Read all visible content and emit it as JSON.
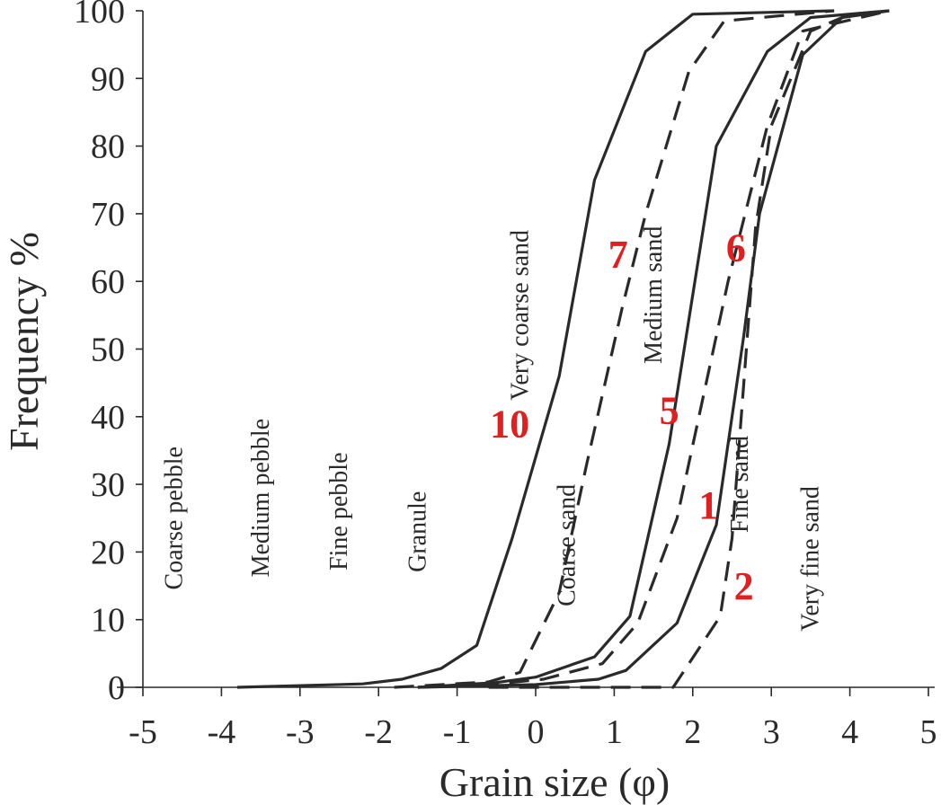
{
  "chart_data": {
    "type": "line",
    "title": "",
    "xlabel": "Grain size (φ)",
    "ylabel": "Frequency %",
    "xlim": [
      -5,
      5
    ],
    "ylim": [
      0,
      100
    ],
    "x_ticks": [
      -5,
      -4,
      -3,
      -2,
      -1,
      0,
      1,
      2,
      3,
      4,
      5
    ],
    "x_tick_labels": [
      "-5",
      "-4",
      "-3",
      "-2",
      "-1",
      "0",
      "1",
      "2",
      "3",
      "4",
      "5"
    ],
    "y_ticks": [
      0,
      10,
      20,
      30,
      40,
      50,
      60,
      70,
      80,
      90,
      100
    ],
    "y_tick_labels": [
      "0",
      "10",
      "20",
      "30",
      "40",
      "50",
      "60",
      "70",
      "80",
      "90",
      "100"
    ],
    "grid": false,
    "legend": "none",
    "series_label_color": "#e02020",
    "line_color": "#2a2a2a",
    "size_classes": [
      {
        "name": "Coarse pebble",
        "x": -4.5,
        "y": 25
      },
      {
        "name": "Medium pebble",
        "x": -3.4,
        "y": 28
      },
      {
        "name": "Fine pebble",
        "x": -2.4,
        "y": 26
      },
      {
        "name": "Granule",
        "x": -1.4,
        "y": 23
      },
      {
        "name": "Very coarse sand",
        "x": -0.1,
        "y": 55
      },
      {
        "name": "Coarse sand",
        "x": 0.5,
        "y": 21
      },
      {
        "name": "Medium sand",
        "x": 1.6,
        "y": 58
      },
      {
        "name": "Fine sand",
        "x": 2.7,
        "y": 30
      },
      {
        "name": "Very fine sand",
        "x": 3.6,
        "y": 19
      }
    ],
    "series": [
      {
        "name": "10",
        "dash": "solid",
        "label_x": -0.33,
        "label_y": 37,
        "points": [
          [
            -3.8,
            0
          ],
          [
            -2.2,
            0.5
          ],
          [
            -1.7,
            1.2
          ],
          [
            -1.2,
            2.8
          ],
          [
            -0.75,
            6.2
          ],
          [
            -0.3,
            22
          ],
          [
            0.3,
            46
          ],
          [
            0.75,
            75
          ],
          [
            1.4,
            94
          ],
          [
            2.0,
            99.5
          ],
          [
            3.8,
            100
          ]
        ]
      },
      {
        "name": "7",
        "dash": "dashed",
        "label_x": 1.05,
        "label_y": 62,
        "points": [
          [
            -1.8,
            0
          ],
          [
            -0.6,
            0.8
          ],
          [
            -0.2,
            2.2
          ],
          [
            0.3,
            14
          ],
          [
            0.65,
            33
          ],
          [
            1.1,
            56
          ],
          [
            1.4,
            70
          ],
          [
            1.95,
            91
          ],
          [
            2.4,
            98.5
          ],
          [
            3.8,
            100
          ]
        ]
      },
      {
        "name": "5",
        "dash": "solid",
        "label_x": 1.7,
        "label_y": 39,
        "points": [
          [
            -1.5,
            0
          ],
          [
            -0.5,
            0.7
          ],
          [
            0.0,
            1.5
          ],
          [
            0.75,
            4.5
          ],
          [
            1.2,
            10.5
          ],
          [
            1.7,
            36
          ],
          [
            2.3,
            80
          ],
          [
            2.95,
            94
          ],
          [
            3.5,
            99
          ],
          [
            4.5,
            100
          ]
        ]
      },
      {
        "name": "6",
        "dash": "dashed",
        "label_x": 2.55,
        "label_y": 63,
        "points": [
          [
            -1.5,
            0
          ],
          [
            -0.5,
            0.5
          ],
          [
            0.1,
            1.2
          ],
          [
            0.85,
            3.5
          ],
          [
            1.3,
            9.5
          ],
          [
            1.8,
            25
          ],
          [
            2.45,
            60
          ],
          [
            2.95,
            83
          ],
          [
            3.4,
            97
          ],
          [
            4.5,
            100
          ]
        ]
      },
      {
        "name": "1",
        "dash": "solid",
        "label_x": 2.2,
        "label_y": 25,
        "points": [
          [
            -1.5,
            0
          ],
          [
            0.0,
            0.4
          ],
          [
            0.8,
            1.2
          ],
          [
            1.15,
            2.5
          ],
          [
            1.8,
            9.5
          ],
          [
            2.3,
            24
          ],
          [
            2.65,
            52
          ],
          [
            2.85,
            70
          ],
          [
            3.4,
            93.5
          ],
          [
            3.9,
            99
          ],
          [
            4.5,
            100
          ]
        ]
      },
      {
        "name": "2",
        "dash": "dashed",
        "label_x": 2.65,
        "label_y": 13,
        "points": [
          [
            -0.6,
            0
          ],
          [
            1.75,
            0
          ],
          [
            2.35,
            10.5
          ],
          [
            2.5,
            22
          ],
          [
            2.65,
            45
          ],
          [
            2.8,
            68
          ],
          [
            3.0,
            83
          ],
          [
            3.5,
            97
          ],
          [
            4.0,
            99.5
          ],
          [
            4.5,
            100
          ]
        ]
      }
    ]
  }
}
